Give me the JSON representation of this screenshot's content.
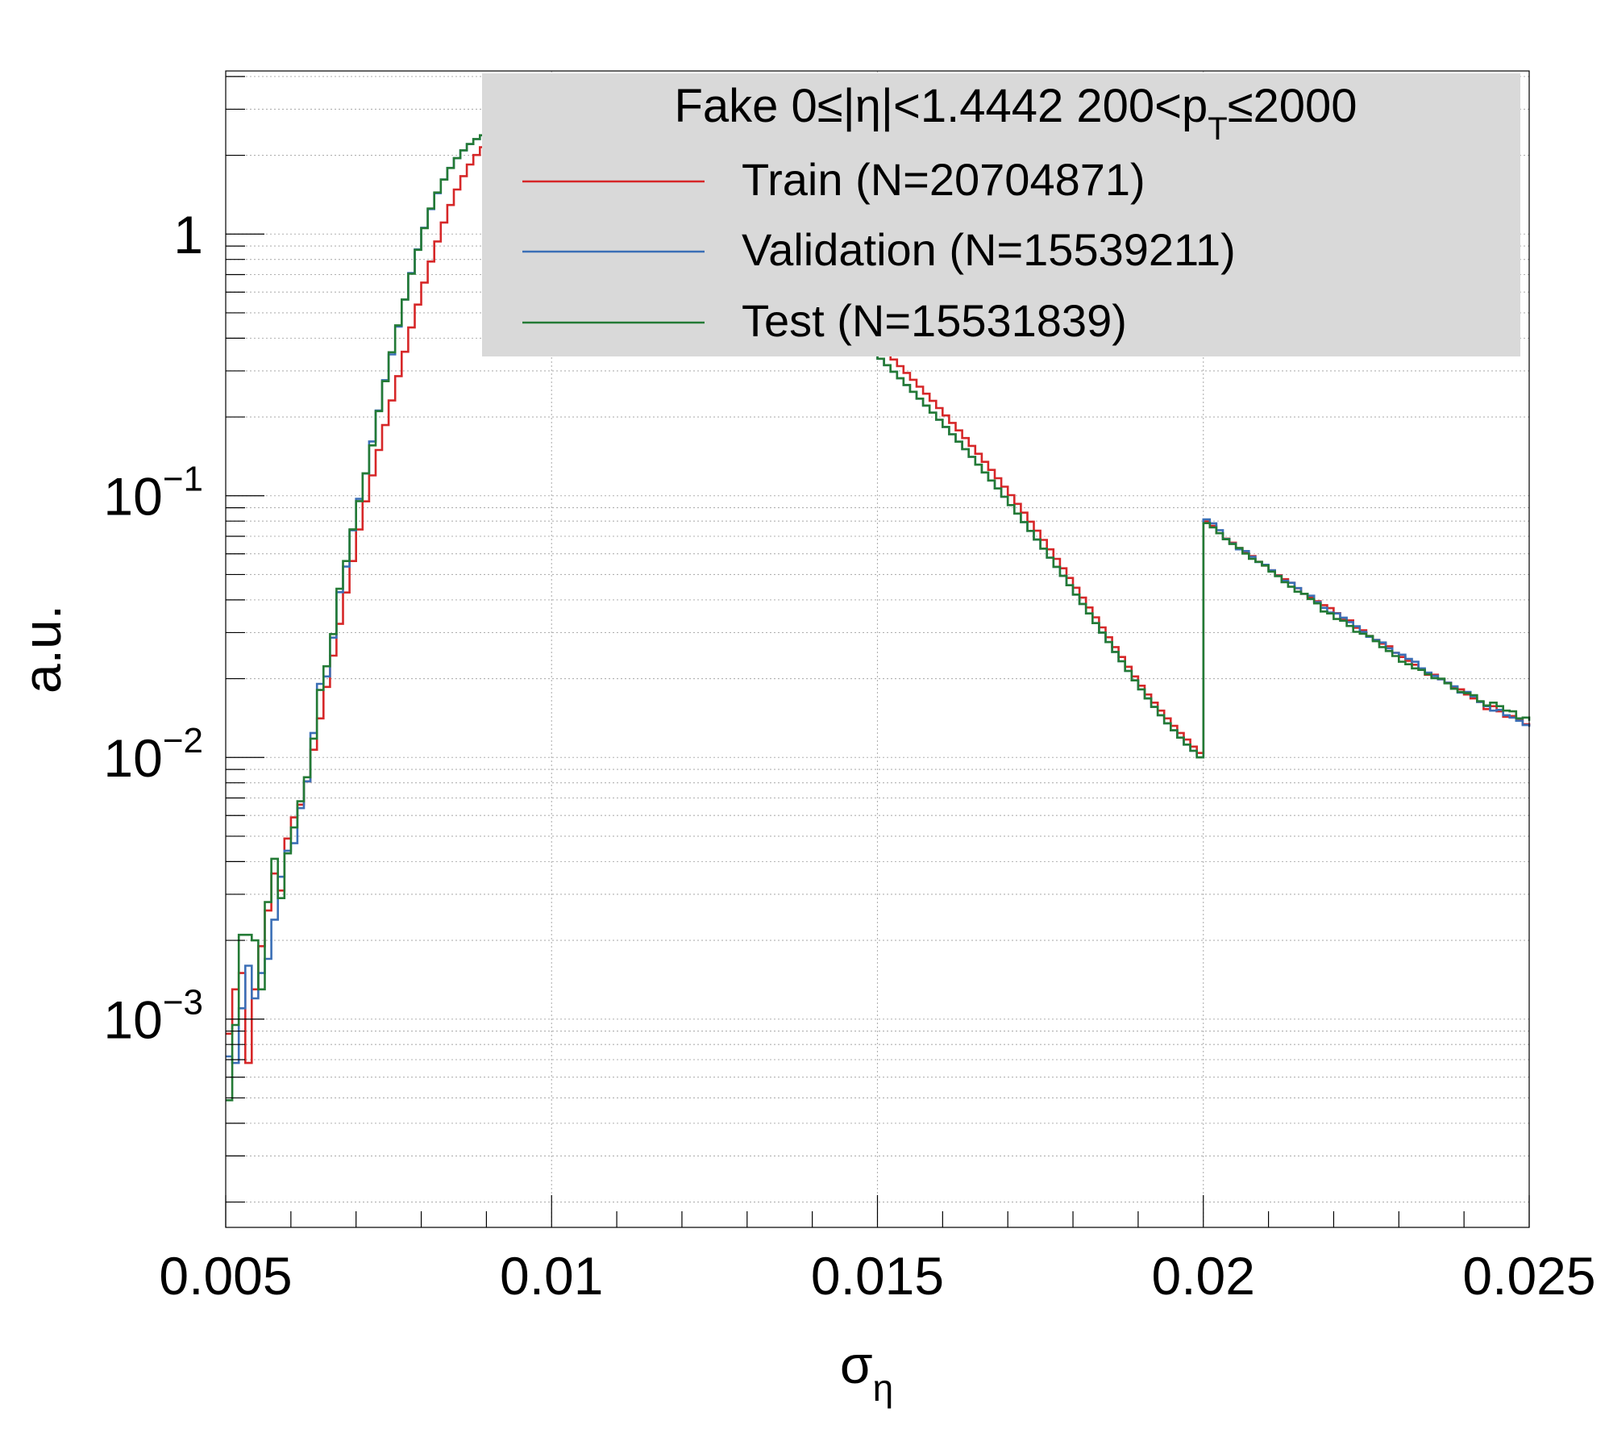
{
  "chart_data": {
    "type": "line",
    "drawstyle": "step",
    "xlabel": "σ",
    "xlabel_sub": "η",
    "ylabel": "a.u.",
    "xlim": [
      0.005,
      0.025
    ],
    "ylim": [
      0.00016,
      4.2
    ],
    "yscale": "log",
    "grid": true,
    "legend_position": "top-right",
    "x_ticks": [
      "0.005",
      "0.01",
      "0.015",
      "0.02",
      "0.025"
    ],
    "y_ticks": [
      {
        "value": 1,
        "base": "1",
        "exp": ""
      },
      {
        "value": 0.1,
        "base": "10",
        "exp": "−1"
      },
      {
        "value": 0.01,
        "base": "10",
        "exp": "−2"
      },
      {
        "value": 0.001,
        "base": "10",
        "exp": "−3"
      }
    ],
    "legend": {
      "header": {
        "prefix": "Fake  0≤|η|<1.4442  200<p",
        "sub": "T",
        "suffix": "≤2000"
      },
      "entries": [
        "Train (N=20704871)",
        "Validation (N=15539211)",
        "Test (N=15531839)"
      ]
    },
    "x": [
      0.005,
      0.0051,
      0.0052,
      0.0053,
      0.0054,
      0.0055,
      0.0056,
      0.0057,
      0.0058,
      0.0059,
      0.006,
      0.0061,
      0.0062,
      0.0063,
      0.0064,
      0.0065,
      0.0066,
      0.0067,
      0.0068,
      0.0069,
      0.007,
      0.0071,
      0.0072,
      0.0073,
      0.0074,
      0.0075,
      0.0076,
      0.0077,
      0.0078,
      0.0079,
      0.008,
      0.0081,
      0.0082,
      0.0083,
      0.0084,
      0.0085,
      0.0086,
      0.0087,
      0.0088,
      0.0089,
      0.009,
      0.0091,
      0.0092,
      0.0093,
      0.0094,
      0.0095,
      0.0096,
      0.0097,
      0.0098,
      0.0099,
      0.01,
      0.0101,
      0.0102,
      0.0103,
      0.0104,
      0.0105,
      0.0106,
      0.0107,
      0.0108,
      0.0109,
      0.011,
      0.0111,
      0.0112,
      0.0113,
      0.0114,
      0.0115,
      0.0116,
      0.0117,
      0.0118,
      0.0119,
      0.012,
      0.0121,
      0.0122,
      0.0123,
      0.0124,
      0.0125,
      0.0126,
      0.0127,
      0.0128,
      0.0129,
      0.013,
      0.0131,
      0.0132,
      0.0133,
      0.0134,
      0.0135,
      0.0136,
      0.0137,
      0.0138,
      0.0139,
      0.014,
      0.0141,
      0.0142,
      0.0143,
      0.0144,
      0.0145,
      0.0146,
      0.0147,
      0.0148,
      0.0149,
      0.015,
      0.0151,
      0.0152,
      0.0153,
      0.0154,
      0.0155,
      0.0156,
      0.0157,
      0.0158,
      0.0159,
      0.016,
      0.0161,
      0.0162,
      0.0163,
      0.0164,
      0.0165,
      0.0166,
      0.0167,
      0.0168,
      0.0169,
      0.017,
      0.0171,
      0.0172,
      0.0173,
      0.0174,
      0.0175,
      0.0176,
      0.0177,
      0.0178,
      0.0179,
      0.018,
      0.0181,
      0.0182,
      0.0183,
      0.0184,
      0.0185,
      0.0186,
      0.0187,
      0.0188,
      0.0189,
      0.019,
      0.0191,
      0.0192,
      0.0193,
      0.0194,
      0.0195,
      0.0196,
      0.0197,
      0.0198,
      0.0199,
      0.02,
      0.0201,
      0.0202,
      0.0203,
      0.0204,
      0.0205,
      0.0206,
      0.0207,
      0.0208,
      0.0209,
      0.021,
      0.0211,
      0.0212,
      0.0213,
      0.0214,
      0.0215,
      0.0216,
      0.0217,
      0.0218,
      0.0219,
      0.022,
      0.0221,
      0.0222,
      0.0223,
      0.0224,
      0.0225,
      0.0226,
      0.0227,
      0.0228,
      0.0229,
      0.023,
      0.0231,
      0.0232,
      0.0233,
      0.0234,
      0.0235,
      0.0236,
      0.0237,
      0.0238,
      0.0239,
      0.024,
      0.0241,
      0.0242,
      0.0243,
      0.0244,
      0.0245,
      0.0246,
      0.0247,
      0.0248,
      0.0249,
      0.025
    ],
    "series": [
      {
        "name": "Train (N=20704871)",
        "color": "#d62728",
        "values": [
          0.00088,
          0.0013,
          0.0015,
          0.00068,
          0.0013,
          0.0019,
          0.0026,
          0.0036,
          0.0031,
          0.0049,
          0.0059,
          0.0066,
          0.0081,
          0.0107,
          0.0141,
          0.0186,
          0.0245,
          0.0324,
          0.0427,
          0.0563,
          0.0743,
          0.0952,
          0.1196,
          0.1496,
          0.1862,
          0.2312,
          0.2866,
          0.355,
          0.4396,
          0.5377,
          0.6526,
          0.7856,
          0.9373,
          1.1071,
          1.2918,
          1.4797,
          1.6655,
          1.8438,
          2.0052,
          2.1486,
          2.2727,
          2.3769,
          2.4614,
          2.5273,
          2.5763,
          2.6108,
          2.6329,
          2.6446,
          2.6478,
          2.6438,
          2.6339,
          2.6185,
          2.5978,
          2.5715,
          2.5392,
          2.5008,
          2.4565,
          2.4069,
          2.353,
          2.2953,
          2.2345,
          2.1713,
          2.1064,
          2.0404,
          1.974,
          1.9075,
          1.8412,
          1.7755,
          1.7106,
          1.6466,
          1.5837,
          1.5221,
          1.4618,
          1.4029,
          1.3455,
          1.2895,
          1.2351,
          1.1823,
          1.1311,
          1.0815,
          1.0335,
          0.9871,
          0.9423,
          0.899,
          0.8573,
          0.8171,
          0.7784,
          0.7411,
          0.7053,
          0.6708,
          0.6377,
          0.6059,
          0.5753,
          0.546,
          0.5179,
          0.4909,
          0.4651,
          0.4403,
          0.4166,
          0.394,
          0.3723,
          0.3515,
          0.3317,
          0.3128,
          0.2947,
          0.2775,
          0.261,
          0.2454,
          0.2305,
          0.2163,
          0.2027,
          0.1899,
          0.1777,
          0.1661,
          0.1551,
          0.1447,
          0.1348,
          0.1255,
          0.1167,
          0.1083,
          0.1005,
          0.0931,
          0.0862,
          0.0796,
          0.0735,
          0.0678,
          0.0624,
          0.0574,
          0.0528,
          0.0485,
          0.0445,
          0.0408,
          0.0374,
          0.0343,
          0.0314,
          0.0288,
          0.0264,
          0.0242,
          0.0222,
          0.0204,
          0.0188,
          0.0174,
          0.0162,
          0.0151,
          0.0141,
          0.0132,
          0.0124,
          0.0117,
          0.011,
          0.0104,
          0.0798,
          0.0767,
          0.0719,
          0.0686,
          0.0662,
          0.0631,
          0.0606,
          0.0588,
          0.0559,
          0.0541,
          0.0519,
          0.0497,
          0.048,
          0.0465,
          0.0443,
          0.0422,
          0.041,
          0.0395,
          0.0382,
          0.0372,
          0.0356,
          0.0336,
          0.0334,
          0.0313,
          0.0306,
          0.0291,
          0.0281,
          0.0272,
          0.0266,
          0.0251,
          0.0242,
          0.0234,
          0.0226,
          0.0216,
          0.0207,
          0.0207,
          0.0199,
          0.0193,
          0.0186,
          0.0182,
          0.0174,
          0.0168,
          0.0163,
          0.0153,
          0.0157,
          0.015,
          0.0143,
          0.0144,
          0.0139,
          0.0134,
          0.0132
        ]
      },
      {
        "name": "Validation (N=15539211)",
        "color": "#3b6fb6",
        "values": [
          0.00072,
          0.00068,
          0.0011,
          0.0016,
          0.0012,
          0.0015,
          0.0017,
          0.0024,
          0.0035,
          0.0044,
          0.0047,
          0.0064,
          0.0081,
          0.0124,
          0.0191,
          0.0204,
          0.0287,
          0.0428,
          0.0536,
          0.0738,
          0.0973,
          0.1216,
          0.1613,
          0.2117,
          0.2765,
          0.3468,
          0.4428,
          0.5621,
          0.7093,
          0.8736,
          1.0573,
          1.2451,
          1.4323,
          1.6165,
          1.79,
          1.9485,
          2.0872,
          2.2066,
          2.3062,
          2.3847,
          2.4441,
          2.4866,
          2.5141,
          2.5285,
          2.5313,
          2.5245,
          2.5094,
          2.4873,
          2.4594,
          2.4265,
          2.3895,
          2.349,
          2.3055,
          2.2596,
          2.2117,
          2.162,
          2.111,
          2.0589,
          2.0058,
          1.9521,
          1.8979,
          1.8434,
          1.7888,
          1.7342,
          1.6797,
          1.6256,
          1.5719,
          1.5187,
          1.4661,
          1.4143,
          1.3633,
          1.3131,
          1.2639,
          1.2157,
          1.1685,
          1.1224,
          1.0774,
          1.0335,
          0.9907,
          0.9491,
          0.9087,
          0.8695,
          0.8314,
          0.7945,
          0.7588,
          0.7242,
          0.6908,
          0.6585,
          0.6273,
          0.5972,
          0.5683,
          0.5404,
          0.5135,
          0.4877,
          0.4629,
          0.4391,
          0.4162,
          0.3943,
          0.3733,
          0.3532,
          0.3339,
          0.3155,
          0.2979,
          0.2811,
          0.265,
          0.2497,
          0.235,
          0.2211,
          0.2078,
          0.1952,
          0.1832,
          0.1718,
          0.1609,
          0.1506,
          0.1408,
          0.1315,
          0.1228,
          0.1144,
          0.1066,
          0.0991,
          0.0921,
          0.0855,
          0.0793,
          0.0734,
          0.068,
          0.0628,
          0.058,
          0.0535,
          0.0494,
          0.0455,
          0.0419,
          0.0386,
          0.0355,
          0.0326,
          0.03,
          0.0276,
          0.0253,
          0.0233,
          0.0214,
          0.0197,
          0.0182,
          0.0168,
          0.0156,
          0.0145,
          0.0135,
          0.0127,
          0.0119,
          0.0112,
          0.0106,
          0.01,
          0.0812,
          0.0785,
          0.0739,
          0.0684,
          0.0657,
          0.0624,
          0.0615,
          0.0584,
          0.0558,
          0.0545,
          0.0519,
          0.0494,
          0.0473,
          0.0465,
          0.0444,
          0.0422,
          0.0415,
          0.0392,
          0.0373,
          0.0358,
          0.0355,
          0.0342,
          0.0329,
          0.0317,
          0.0302,
          0.0289,
          0.0281,
          0.0275,
          0.0261,
          0.0251,
          0.0247,
          0.0238,
          0.0232,
          0.0219,
          0.0211,
          0.0205,
          0.0199,
          0.0193,
          0.0187,
          0.0177,
          0.0178,
          0.0171,
          0.0163,
          0.0157,
          0.0151,
          0.0152,
          0.0145,
          0.0142,
          0.0138,
          0.0133,
          0.0131
        ]
      },
      {
        "name": "Test (N=15531839)",
        "color": "#237a35",
        "values": [
          0.00049,
          0.00095,
          0.0021,
          0.0021,
          0.002,
          0.0013,
          0.0028,
          0.0041,
          0.0029,
          0.0043,
          0.0054,
          0.0068,
          0.0084,
          0.0118,
          0.0181,
          0.0223,
          0.0296,
          0.0441,
          0.0563,
          0.0744,
          0.0954,
          0.1218,
          0.1557,
          0.2105,
          0.2739,
          0.3535,
          0.4481,
          0.5622,
          0.7051,
          0.8702,
          1.0534,
          1.2524,
          1.4411,
          1.6144,
          1.7886,
          1.9499,
          2.0888,
          2.2079,
          2.3072,
          2.3855,
          2.4447,
          2.4869,
          2.5142,
          2.5285,
          2.5313,
          2.5244,
          2.5093,
          2.4873,
          2.4594,
          2.4265,
          2.3895,
          2.349,
          2.3055,
          2.2596,
          2.2117,
          2.162,
          2.111,
          2.0589,
          2.0058,
          1.9521,
          1.8979,
          1.8434,
          1.7888,
          1.7342,
          1.6797,
          1.6256,
          1.5719,
          1.5187,
          1.4661,
          1.4143,
          1.3633,
          1.3131,
          1.2639,
          1.2157,
          1.1685,
          1.1224,
          1.0774,
          1.0335,
          0.9907,
          0.9491,
          0.9087,
          0.8695,
          0.8314,
          0.7945,
          0.7588,
          0.7242,
          0.6908,
          0.6585,
          0.6273,
          0.5972,
          0.5683,
          0.5404,
          0.5135,
          0.4877,
          0.4629,
          0.4391,
          0.4162,
          0.3943,
          0.3733,
          0.3532,
          0.3339,
          0.3155,
          0.2979,
          0.2811,
          0.265,
          0.2497,
          0.235,
          0.2211,
          0.2078,
          0.1952,
          0.1832,
          0.1718,
          0.1609,
          0.1506,
          0.1408,
          0.1315,
          0.1228,
          0.1144,
          0.1066,
          0.0991,
          0.0921,
          0.0855,
          0.0793,
          0.0734,
          0.068,
          0.0628,
          0.058,
          0.0535,
          0.0494,
          0.0455,
          0.0419,
          0.0386,
          0.0355,
          0.0326,
          0.03,
          0.0276,
          0.0253,
          0.0233,
          0.0214,
          0.0197,
          0.0182,
          0.0168,
          0.0156,
          0.0145,
          0.0135,
          0.0127,
          0.0119,
          0.0112,
          0.0106,
          0.01,
          0.0786,
          0.0757,
          0.0719,
          0.0682,
          0.0654,
          0.0631,
          0.0601,
          0.0574,
          0.0559,
          0.0541,
          0.0513,
          0.0493,
          0.0467,
          0.0449,
          0.043,
          0.0422,
          0.0403,
          0.0388,
          0.0361,
          0.0355,
          0.0338,
          0.0333,
          0.0318,
          0.0302,
          0.0297,
          0.0291,
          0.0278,
          0.0264,
          0.0255,
          0.0244,
          0.0232,
          0.0227,
          0.0219,
          0.0216,
          0.0208,
          0.0201,
          0.02,
          0.0192,
          0.0183,
          0.0178,
          0.0176,
          0.0173,
          0.0164,
          0.0158,
          0.0162,
          0.0157,
          0.0151,
          0.015,
          0.0141,
          0.0142,
          0.0138
        ]
      }
    ]
  }
}
